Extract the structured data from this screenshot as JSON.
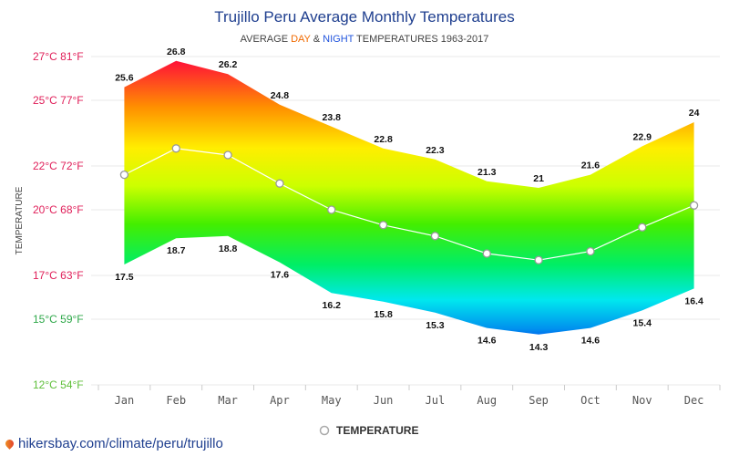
{
  "chart_data": {
    "type": "area",
    "title": "Trujillo Peru Average Monthly Temperatures",
    "subtitle": {
      "prefix": "AVERAGE ",
      "day": "DAY",
      "mid": " & ",
      "night": "NIGHT",
      "suffix": " TEMPERATURES 1963-2017"
    },
    "ylabel": "TEMPERATURE",
    "ylim": [
      12,
      27
    ],
    "yticks": [
      {
        "value": 27,
        "label": "27°C 81°F",
        "color": "#e0205a"
      },
      {
        "value": 25,
        "label": "25°C 77°F",
        "color": "#e0205a"
      },
      {
        "value": 22,
        "label": "22°C 72°F",
        "color": "#e0205a"
      },
      {
        "value": 20,
        "label": "20°C 68°F",
        "color": "#e0205a"
      },
      {
        "value": 17,
        "label": "17°C 63°F",
        "color": "#e0205a"
      },
      {
        "value": 15,
        "label": "15°C 59°F",
        "color": "#2fa84a"
      },
      {
        "value": 12,
        "label": "12°C 54°F",
        "color": "#5fbf3a"
      }
    ],
    "categories": [
      "Jan",
      "Feb",
      "Mar",
      "Apr",
      "May",
      "Jun",
      "Jul",
      "Aug",
      "Sep",
      "Oct",
      "Nov",
      "Dec"
    ],
    "series": [
      {
        "role": "day",
        "values": [
          25.6,
          26.8,
          26.2,
          24.8,
          23.8,
          22.8,
          22.3,
          21.3,
          21,
          21.6,
          22.9,
          24
        ]
      },
      {
        "role": "night",
        "values": [
          17.5,
          18.7,
          18.8,
          17.6,
          16.2,
          15.8,
          15.3,
          14.6,
          14.3,
          14.6,
          15.4,
          16.4
        ]
      },
      {
        "name": "TEMPERATURE",
        "values": [
          21.6,
          22.8,
          22.5,
          21.2,
          20,
          19.3,
          18.8,
          18,
          17.7,
          18.1,
          19.2,
          20.2
        ]
      }
    ],
    "legend": {
      "position": "bottom",
      "label": "TEMPERATURE"
    },
    "grid": true
  },
  "footer": {
    "text": "hikersbay.com/climate/peru/trujillo",
    "icon": "location-pin-icon"
  }
}
